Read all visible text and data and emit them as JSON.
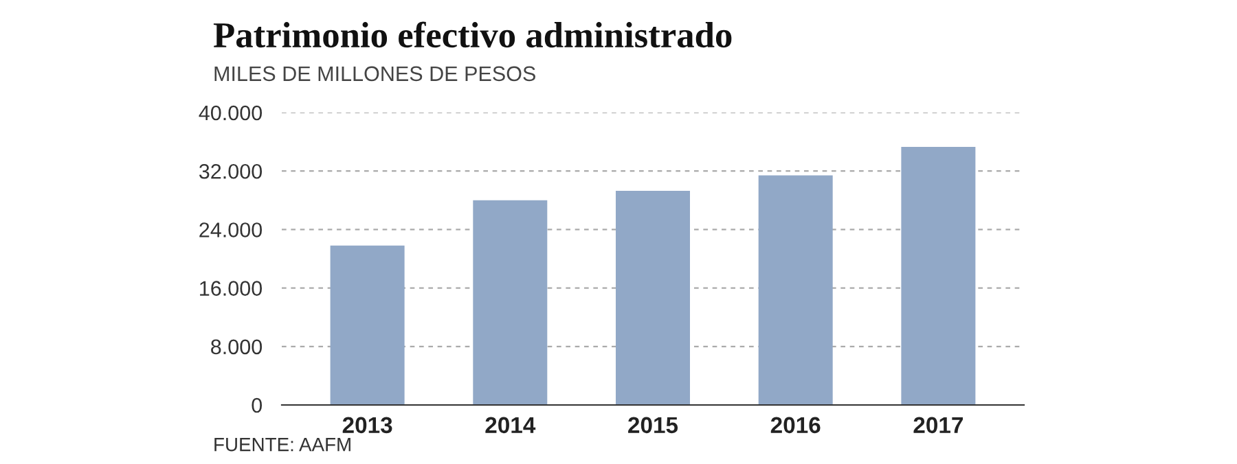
{
  "chart_data": {
    "type": "bar",
    "title": "Patrimonio efectivo administrado",
    "subtitle": "MILES DE MILLONES DE PESOS",
    "categories": [
      "2013",
      "2014",
      "2015",
      "2016",
      "2017"
    ],
    "values": [
      21800,
      28000,
      29300,
      31400,
      35300
    ],
    "color": "#91a8c7",
    "ylim": [
      0,
      40000
    ],
    "yticks": [
      0,
      {
        "value": 8000,
        "label": "8.000"
      },
      {
        "value": 16000,
        "label": "16.000"
      },
      {
        "value": 24000,
        "label": "24.000"
      },
      {
        "value": 32000,
        "label": "32.000"
      },
      {
        "value": 40000,
        "label": "40.000"
      }
    ],
    "grid": "y",
    "annotations": [
      "FUENTE: AAFM"
    ]
  }
}
